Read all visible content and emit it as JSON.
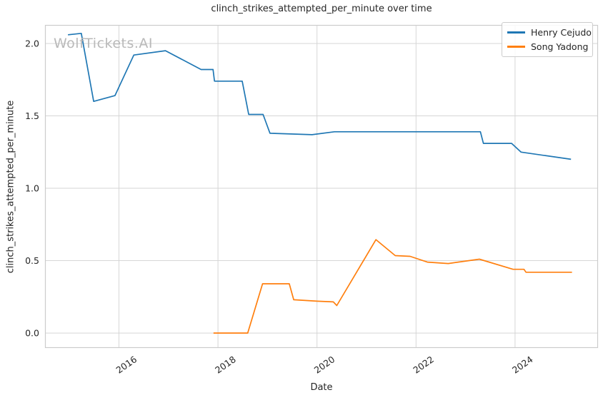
{
  "watermark": {
    "text": "WolfTickets.AI"
  },
  "chart_data": {
    "type": "line",
    "title": "clinch_strikes_attempted_per_minute over time",
    "xlabel": "Date",
    "ylabel": "clinch_strikes_attempted_per_minute",
    "grid": true,
    "legend_position": "upper right",
    "xlim": [
      2014.507,
      2025.675
    ],
    "ylim": [
      -0.103,
      2.128
    ],
    "xticks": [
      {
        "value": 2016,
        "label": "2016"
      },
      {
        "value": 2018,
        "label": "2018"
      },
      {
        "value": 2020,
        "label": "2020"
      },
      {
        "value": 2022,
        "label": "2022"
      },
      {
        "value": 2024,
        "label": "2024"
      }
    ],
    "yticks": [
      {
        "value": 0.0,
        "label": "0.0"
      },
      {
        "value": 0.5,
        "label": "0.5"
      },
      {
        "value": 1.0,
        "label": "1.0"
      },
      {
        "value": 1.5,
        "label": "1.5"
      },
      {
        "value": 2.0,
        "label": "2.0"
      }
    ],
    "series": [
      {
        "name": "Henry Cejudo",
        "color": "#1f77b4",
        "points": [
          [
            2014.97,
            2.06
          ],
          [
            2015.24,
            2.07
          ],
          [
            2015.49,
            1.6
          ],
          [
            2015.92,
            1.64
          ],
          [
            2016.3,
            1.92
          ],
          [
            2016.94,
            1.95
          ],
          [
            2017.66,
            1.82
          ],
          [
            2017.9,
            1.82
          ],
          [
            2017.93,
            1.74
          ],
          [
            2018.49,
            1.74
          ],
          [
            2018.62,
            1.51
          ],
          [
            2018.91,
            1.51
          ],
          [
            2019.05,
            1.38
          ],
          [
            2019.9,
            1.37
          ],
          [
            2020.35,
            1.39
          ],
          [
            2023.3,
            1.39
          ],
          [
            2023.36,
            1.31
          ],
          [
            2023.93,
            1.31
          ],
          [
            2024.12,
            1.25
          ],
          [
            2025.13,
            1.2
          ]
        ]
      },
      {
        "name": "Song Yadong",
        "color": "#ff7f0e",
        "points": [
          [
            2017.91,
            0.0
          ],
          [
            2018.6,
            0.0
          ],
          [
            2018.9,
            0.34
          ],
          [
            2019.44,
            0.34
          ],
          [
            2019.53,
            0.23
          ],
          [
            2020.0,
            0.22
          ],
          [
            2020.33,
            0.215
          ],
          [
            2020.4,
            0.19
          ],
          [
            2021.19,
            0.645
          ],
          [
            2021.58,
            0.535
          ],
          [
            2021.88,
            0.53
          ],
          [
            2022.23,
            0.49
          ],
          [
            2022.65,
            0.48
          ],
          [
            2023.28,
            0.51
          ],
          [
            2023.96,
            0.44
          ],
          [
            2024.18,
            0.44
          ],
          [
            2024.22,
            0.42
          ],
          [
            2025.15,
            0.42
          ]
        ]
      }
    ]
  },
  "colors": {
    "grid": "#d6d6d6",
    "spine": "#cccccc",
    "tick_text": "#262626",
    "background": "#ffffff"
  }
}
